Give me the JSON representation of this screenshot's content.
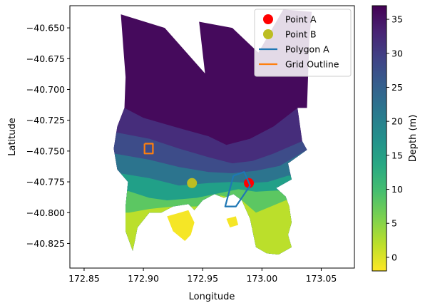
{
  "chart_data": {
    "type": "heatmap",
    "title": "",
    "xlabel": "Longitude",
    "ylabel": "Latitude",
    "xlim": [
      172.838,
      173.078
    ],
    "ylim": [
      -40.845,
      -40.632
    ],
    "xticks": [
      172.85,
      172.9,
      172.95,
      173.0,
      173.05
    ],
    "xtick_labels": [
      "172.85",
      "172.90",
      "172.95",
      "173.00",
      "173.05"
    ],
    "yticks": [
      -40.65,
      -40.675,
      -40.7,
      -40.725,
      -40.75,
      -40.775,
      -40.8,
      -40.825
    ],
    "ytick_labels": [
      "−40.650",
      "−40.675",
      "−40.700",
      "−40.725",
      "−40.750",
      "−40.775",
      "−40.800",
      "−40.825"
    ],
    "grid": false,
    "legend_position": "upper-right",
    "colorbar": {
      "label": "Depth (m)",
      "min": -2,
      "max": 37,
      "ticks": [
        0,
        5,
        10,
        15,
        20,
        25,
        30,
        35
      ],
      "tick_labels": [
        "0",
        "5",
        "10",
        "15",
        "20",
        "25",
        "30",
        "35"
      ],
      "colormap": "viridis-reversed"
    },
    "mesh": {
      "outline": [
        [
          172.881,
          -40.639
        ],
        [
          172.918,
          -40.65
        ],
        [
          172.952,
          -40.687
        ],
        [
          172.947,
          -40.645
        ],
        [
          172.975,
          -40.65
        ],
        [
          172.997,
          -40.67
        ],
        [
          173.018,
          -40.635
        ],
        [
          173.042,
          -40.637
        ],
        [
          173.04,
          -40.66
        ],
        [
          173.038,
          -40.715
        ],
        [
          173.03,
          -40.715
        ],
        [
          173.034,
          -40.742
        ],
        [
          173.038,
          -40.749
        ],
        [
          173.022,
          -40.76
        ],
        [
          173.025,
          -40.773
        ],
        [
          173.012,
          -40.78
        ],
        [
          173.02,
          -40.787
        ],
        [
          173.023,
          -40.795
        ],
        [
          173.025,
          -40.808
        ],
        [
          173.022,
          -40.818
        ],
        [
          173.025,
          -40.828
        ],
        [
          173.014,
          -40.834
        ],
        [
          173.004,
          -40.833
        ],
        [
          172.995,
          -40.828
        ],
        [
          172.99,
          -40.805
        ],
        [
          172.983,
          -40.79
        ],
        [
          172.976,
          -40.785
        ],
        [
          172.968,
          -40.788
        ],
        [
          172.96,
          -40.785
        ],
        [
          172.95,
          -40.79
        ],
        [
          172.943,
          -40.798
        ],
        [
          172.938,
          -40.793
        ],
        [
          172.925,
          -40.795
        ],
        [
          172.915,
          -40.8
        ],
        [
          172.905,
          -40.8
        ],
        [
          172.895,
          -40.812
        ],
        [
          172.893,
          -40.822
        ],
        [
          172.891,
          -40.831
        ],
        [
          172.885,
          -40.815
        ],
        [
          172.885,
          -40.795
        ],
        [
          172.887,
          -40.775
        ],
        [
          172.878,
          -40.765
        ],
        [
          172.875,
          -40.748
        ],
        [
          172.878,
          -40.73
        ],
        [
          172.884,
          -40.715
        ],
        [
          172.885,
          -40.69
        ],
        [
          172.883,
          -40.665
        ]
      ],
      "islands": [
        [
          [
            172.92,
            -40.803
          ],
          [
            172.938,
            -40.798
          ],
          [
            172.943,
            -40.808
          ],
          [
            172.94,
            -40.818
          ],
          [
            172.935,
            -40.823
          ],
          [
            172.925,
            -40.815
          ]
        ],
        [
          [
            172.97,
            -40.805
          ],
          [
            172.978,
            -40.803
          ],
          [
            172.98,
            -40.81
          ],
          [
            172.973,
            -40.812
          ]
        ]
      ],
      "depth_contours": [
        {
          "depth": 32,
          "points": [
            [
              172.884,
              -40.715
            ],
            [
              172.9,
              -40.723
            ],
            [
              172.925,
              -40.73
            ],
            [
              172.955,
              -40.738
            ],
            [
              172.97,
              -40.745
            ],
            [
              172.99,
              -40.74
            ],
            [
              173.01,
              -40.73
            ],
            [
              173.03,
              -40.715
            ]
          ]
        },
        {
          "depth": 28,
          "points": [
            [
              172.878,
              -40.735
            ],
            [
              172.905,
              -40.74
            ],
            [
              172.93,
              -40.748
            ],
            [
              172.955,
              -40.755
            ],
            [
              172.975,
              -40.76
            ],
            [
              172.992,
              -40.758
            ],
            [
              173.01,
              -40.752
            ],
            [
              173.034,
              -40.742
            ]
          ]
        },
        {
          "depth": 22,
          "points": [
            [
              172.875,
              -40.752
            ],
            [
              172.905,
              -40.757
            ],
            [
              172.93,
              -40.763
            ],
            [
              172.955,
              -40.767
            ],
            [
              172.975,
              -40.768
            ],
            [
              172.995,
              -40.766
            ],
            [
              173.015,
              -40.762
            ],
            [
              173.038,
              -40.749
            ]
          ]
        },
        {
          "depth": 15,
          "points": [
            [
              172.88,
              -40.768
            ],
            [
              172.905,
              -40.772
            ],
            [
              172.93,
              -40.778
            ],
            [
              172.955,
              -40.776
            ],
            [
              172.975,
              -40.775
            ],
            [
              172.99,
              -40.776
            ],
            [
              173.005,
              -40.775
            ],
            [
              173.022,
              -40.77
            ]
          ]
        },
        {
          "depth": 8,
          "points": [
            [
              172.886,
              -40.782
            ],
            [
              172.905,
              -40.788
            ],
            [
              172.92,
              -40.79
            ],
            [
              172.945,
              -40.788
            ],
            [
              172.965,
              -40.784
            ],
            [
              172.98,
              -40.781
            ],
            [
              172.995,
              -40.783
            ],
            [
              173.012,
              -40.782
            ]
          ]
        },
        {
          "depth": 2,
          "points": [
            [
              172.888,
              -40.8
            ],
            [
              172.905,
              -40.797
            ],
            [
              172.925,
              -40.795
            ],
            [
              172.945,
              -40.795
            ],
            [
              172.965,
              -40.786
            ],
            [
              172.983,
              -40.79
            ],
            [
              172.995,
              -40.8
            ],
            [
              173.02,
              -40.79
            ]
          ]
        }
      ]
    },
    "series": [
      {
        "name": "Point A",
        "type": "marker",
        "color": "#ff0000",
        "points": [
          [
            172.989,
            -40.776
          ]
        ]
      },
      {
        "name": "Point B",
        "type": "marker",
        "color": "#bcbd22",
        "points": [
          [
            172.941,
            -40.776
          ]
        ]
      },
      {
        "name": "Polygon A",
        "type": "line",
        "color": "#1f77b4",
        "points": [
          [
            172.976,
            -40.77
          ],
          [
            172.985,
            -40.767
          ],
          [
            172.99,
            -40.778
          ],
          [
            172.978,
            -40.795
          ],
          [
            172.969,
            -40.795
          ],
          [
            172.976,
            -40.77
          ]
        ]
      },
      {
        "name": "Grid Outline",
        "type": "line",
        "color": "#ff7f0e",
        "points": [
          [
            172.901,
            -40.744
          ],
          [
            172.908,
            -40.744
          ],
          [
            172.908,
            -40.752
          ],
          [
            172.901,
            -40.752
          ],
          [
            172.901,
            -40.744
          ]
        ]
      }
    ]
  }
}
